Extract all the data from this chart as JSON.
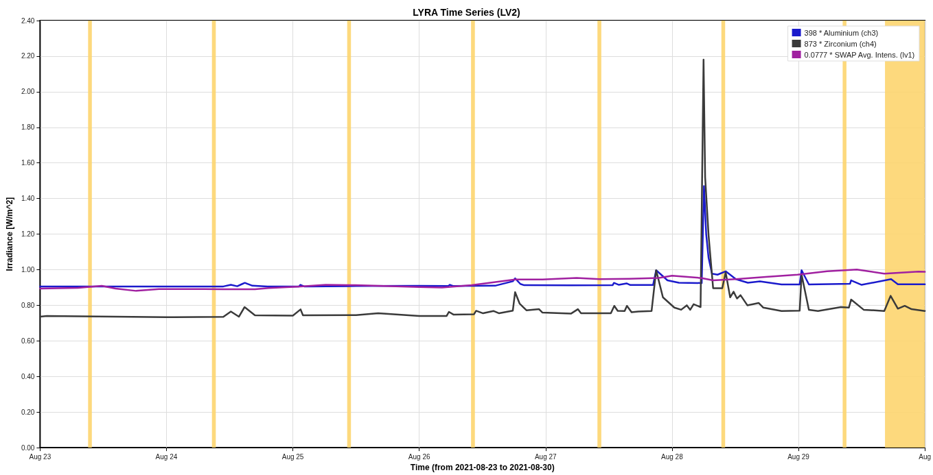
{
  "chart_data": {
    "type": "line",
    "title": "LYRA Time Series (LV2)",
    "xlabel": "Time (from 2021-08-23 to 2021-08-30)",
    "ylabel": "Irradiance [W/m^2]",
    "xlim": [
      "2021-08-23T00:00",
      "2021-08-30T00:00"
    ],
    "xticks": [
      {
        "value": "2021-08-23T00:00",
        "label": "Aug 23"
      },
      {
        "value": "2021-08-24T00:00",
        "label": "Aug 24"
      },
      {
        "value": "2021-08-25T00:00",
        "label": "Aug 25"
      },
      {
        "value": "2021-08-26T00:00",
        "label": "Aug 26"
      },
      {
        "value": "2021-08-27T00:00",
        "label": "Aug 27"
      },
      {
        "value": "2021-08-28T00:00",
        "label": "Aug 28"
      },
      {
        "value": "2021-08-29T00:00",
        "label": "Aug 29"
      },
      {
        "value": "2021-08-30T00:00",
        "label": "Aug"
      }
    ],
    "ylim": [
      0,
      2.4
    ],
    "yticks": [
      {
        "value": 0,
        "label": "0.00"
      },
      {
        "value": 0.2,
        "label": "0.20"
      },
      {
        "value": 0.4,
        "label": "0.40"
      },
      {
        "value": 0.6,
        "label": "0.60"
      },
      {
        "value": 0.8,
        "label": "0.80"
      },
      {
        "value": 1,
        "label": "1.00"
      },
      {
        "value": 1.2,
        "label": "1.20"
      },
      {
        "value": 1.4,
        "label": "1.40"
      },
      {
        "value": 1.6,
        "label": "1.60"
      },
      {
        "value": 1.8,
        "label": "1.80"
      },
      {
        "value": 2,
        "label": "2.00"
      },
      {
        "value": 2.2,
        "label": "2.20"
      },
      {
        "value": 2.4,
        "label": "2.40"
      }
    ],
    "grid": true,
    "legend": "top right",
    "marker": "none",
    "line_style": "solid",
    "series": [
      {
        "name": "398 * Aluminium (ch3)",
        "color": "#1a1acc",
        "x": [
          "2021-08-23T00:00",
          "2021-08-23T12:00",
          "2021-08-24T00:00",
          "2021-08-24T10:48",
          "2021-08-24T12:14",
          "2021-08-24T13:26",
          "2021-08-24T14:24",
          "2021-08-24T14:53",
          "2021-08-24T16:19",
          "2021-08-24T19:12",
          "2021-08-25T01:12",
          "2021-08-25T01:26",
          "2021-08-25T02:10",
          "2021-08-25T12:00",
          "2021-08-26T00:00",
          "2021-08-26T05:31",
          "2021-08-26T05:46",
          "2021-08-26T06:29",
          "2021-08-26T14:24",
          "2021-08-26T17:46",
          "2021-08-26T18:12",
          "2021-08-26T19:12",
          "2021-08-26T19:55",
          "2021-08-27T04:48",
          "2021-08-27T12:43",
          "2021-08-27T12:58",
          "2021-08-27T13:55",
          "2021-08-27T15:22",
          "2021-08-27T16:05",
          "2021-08-27T20:24",
          "2021-08-27T20:59",
          "2021-08-27T23:08",
          "2021-08-28T01:18",
          "2021-08-28T05:38",
          "2021-08-28T06:04",
          "2021-08-28T06:29",
          "2021-08-28T06:56",
          "2021-08-28T07:35",
          "2021-08-28T08:38",
          "2021-08-28T10:11",
          "2021-08-28T12:07",
          "2021-08-28T14:24",
          "2021-08-28T16:41",
          "2021-08-28T20:47",
          "2021-08-29T00:14",
          "2021-08-29T00:36",
          "2021-08-29T01:59",
          "2021-08-29T09:48",
          "2021-08-29T10:00",
          "2021-08-29T12:00",
          "2021-08-29T17:36",
          "2021-08-29T18:53",
          "2021-08-30T00:00"
        ],
        "values": [
          0.906,
          0.906,
          0.906,
          0.906,
          0.915,
          0.907,
          0.92,
          0.926,
          0.91,
          0.906,
          0.906,
          0.915,
          0.906,
          0.908,
          0.909,
          0.908,
          0.915,
          0.908,
          0.91,
          0.935,
          0.951,
          0.92,
          0.913,
          0.912,
          0.913,
          0.926,
          0.915,
          0.923,
          0.914,
          0.914,
          0.997,
          0.94,
          0.927,
          0.925,
          1.47,
          1.2,
          1.067,
          0.978,
          0.972,
          0.991,
          0.947,
          0.927,
          0.934,
          0.917,
          0.917,
          0.997,
          0.917,
          0.921,
          0.94,
          0.915,
          0.947,
          0.918,
          0.918
        ]
      },
      {
        "name": "873 * Zirconium (ch4)",
        "color": "#3a3a3a",
        "x": [
          "2021-08-23T00:00",
          "2021-08-23T01:18",
          "2021-08-24T00:00",
          "2021-08-24T10:48",
          "2021-08-24T12:14",
          "2021-08-24T13:45",
          "2021-08-24T14:50",
          "2021-08-24T16:48",
          "2021-08-25T00:00",
          "2021-08-25T01:28",
          "2021-08-25T01:55",
          "2021-08-25T12:00",
          "2021-08-25T16:12",
          "2021-08-26T00:00",
          "2021-08-26T05:12",
          "2021-08-26T05:38",
          "2021-08-26T06:29",
          "2021-08-26T10:24",
          "2021-08-26T10:48",
          "2021-08-26T12:07",
          "2021-08-26T14:05",
          "2021-08-26T15:10",
          "2021-08-26T17:46",
          "2021-08-26T18:12",
          "2021-08-26T19:03",
          "2021-08-26T20:21",
          "2021-08-26T22:45",
          "2021-08-26T23:24",
          "2021-08-27T04:48",
          "2021-08-27T06:07",
          "2021-08-27T06:43",
          "2021-08-27T12:23",
          "2021-08-27T13:02",
          "2021-08-27T13:41",
          "2021-08-27T15:00",
          "2021-08-27T15:26",
          "2021-08-27T16:19",
          "2021-08-27T17:36",
          "2021-08-27T20:07",
          "2021-08-27T20:59",
          "2021-08-27T22:16",
          "2021-08-28T00:26",
          "2021-08-28T01:44",
          "2021-08-28T02:48",
          "2021-08-28T03:27",
          "2021-08-28T04:06",
          "2021-08-28T05:25",
          "2021-08-28T05:59",
          "2021-08-28T06:17",
          "2021-08-28T06:56",
          "2021-08-28T07:48",
          "2021-08-28T09:32",
          "2021-08-28T10:11",
          "2021-08-28T11:02",
          "2021-08-28T11:41",
          "2021-08-28T12:20",
          "2021-08-28T13:00",
          "2021-08-28T14:18",
          "2021-08-28T16:28",
          "2021-08-28T17:20",
          "2021-08-28T20:47",
          "2021-08-29T00:14",
          "2021-08-29T00:36",
          "2021-08-29T01:59",
          "2021-08-29T03:43",
          "2021-08-29T08:04",
          "2021-08-29T09:35",
          "2021-08-29T10:00",
          "2021-08-29T12:23",
          "2021-08-29T16:18",
          "2021-08-29T17:30",
          "2021-08-29T18:53",
          "2021-08-29T20:11",
          "2021-08-29T21:29",
          "2021-08-30T00:00"
        ],
        "values": [
          0.736,
          0.74,
          0.733,
          0.735,
          0.765,
          0.736,
          0.79,
          0.744,
          0.742,
          0.777,
          0.744,
          0.745,
          0.755,
          0.74,
          0.74,
          0.763,
          0.748,
          0.75,
          0.769,
          0.755,
          0.768,
          0.755,
          0.77,
          0.874,
          0.81,
          0.772,
          0.778,
          0.759,
          0.753,
          0.778,
          0.755,
          0.755,
          0.797,
          0.769,
          0.768,
          0.797,
          0.761,
          0.765,
          0.768,
          0.997,
          0.845,
          0.787,
          0.775,
          0.8,
          0.775,
          0.806,
          0.79,
          2.18,
          1.52,
          1.195,
          0.896,
          0.896,
          0.985,
          0.845,
          0.876,
          0.838,
          0.857,
          0.8,
          0.813,
          0.787,
          0.768,
          0.77,
          0.972,
          0.775,
          0.768,
          0.79,
          0.787,
          0.832,
          0.775,
          0.768,
          0.853,
          0.781,
          0.797,
          0.778,
          0.768
        ]
      },
      {
        "name": "0.0777 * SWAP Avg. Intens. (lv1)",
        "color": "#a020a0",
        "x": [
          "2021-08-23T00:00",
          "2021-08-23T07:12",
          "2021-08-23T11:43",
          "2021-08-23T14:20",
          "2021-08-23T18:14",
          "2021-08-23T22:34",
          "2021-08-24T07:12",
          "2021-08-24T10:44",
          "2021-08-24T16:48",
          "2021-08-24T19:26",
          "2021-08-25T01:26",
          "2021-08-25T06:14",
          "2021-08-25T11:53",
          "2021-08-25T16:12",
          "2021-08-26T00:00",
          "2021-08-26T04:19",
          "2021-08-26T09:58",
          "2021-08-26T18:12",
          "2021-08-26T23:24",
          "2021-08-27T05:53",
          "2021-08-27T10:13",
          "2021-08-27T15:50",
          "2021-08-27T21:29",
          "2021-08-28T00:00",
          "2021-08-28T05:38",
          "2021-08-28T07:48",
          "2021-08-28T12:07",
          "2021-08-28T17:46",
          "2021-08-28T23:50",
          "2021-08-29T05:27",
          "2021-08-29T11:05",
          "2021-08-29T16:18",
          "2021-08-29T22:47",
          "2021-08-30T00:00"
        ],
        "values": [
          0.894,
          0.898,
          0.909,
          0.894,
          0.881,
          0.891,
          0.891,
          0.89,
          0.89,
          0.897,
          0.906,
          0.915,
          0.913,
          0.909,
          0.903,
          0.9,
          0.913,
          0.945,
          0.945,
          0.954,
          0.947,
          0.949,
          0.954,
          0.966,
          0.953,
          0.94,
          0.947,
          0.959,
          0.972,
          0.991,
          1.001,
          0.978,
          0.989,
          0.988
        ]
      }
    ],
    "bands": [
      {
        "axis": "x",
        "from": "2021-08-23T09:07",
        "to": "2021-08-23T09:50",
        "color": "#fdd56f"
      },
      {
        "axis": "x",
        "from": "2021-08-24T08:38",
        "to": "2021-08-24T09:22",
        "color": "#fdd56f"
      },
      {
        "axis": "x",
        "from": "2021-08-25T10:19",
        "to": "2021-08-25T11:02",
        "color": "#fdd56f"
      },
      {
        "axis": "x",
        "from": "2021-08-26T09:50",
        "to": "2021-08-26T10:34",
        "color": "#fdd56f"
      },
      {
        "axis": "x",
        "from": "2021-08-27T09:50",
        "to": "2021-08-27T10:34",
        "color": "#fdd56f"
      },
      {
        "axis": "x",
        "from": "2021-08-28T09:22",
        "to": "2021-08-28T10:05",
        "color": "#fdd56f"
      },
      {
        "axis": "x",
        "from": "2021-08-29T08:24",
        "to": "2021-08-29T09:07",
        "color": "#fdd56f"
      },
      {
        "axis": "x",
        "from": "2021-08-29T16:26",
        "to": "2021-08-30T00:00",
        "color": "#fdd56f"
      }
    ]
  }
}
